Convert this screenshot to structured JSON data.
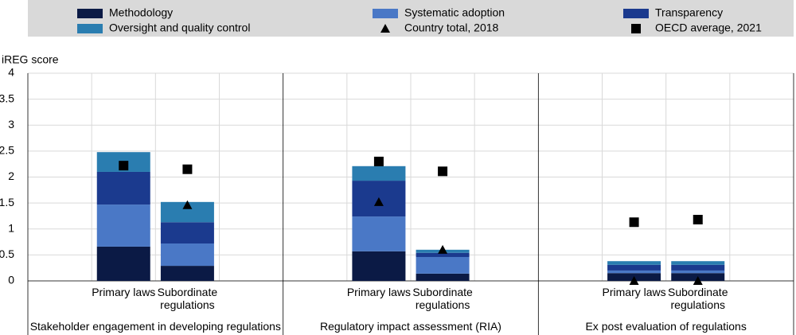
{
  "chart_data": {
    "type": "bar",
    "stacked": true,
    "y_label": "iREG score",
    "ylim": [
      0,
      4
    ],
    "yticks": [
      0,
      0.5,
      1,
      1.5,
      2,
      2.5,
      3,
      3.5,
      4
    ],
    "grid": true,
    "legend": "top",
    "groups": [
      "Stakeholder engagement in developing regulations",
      "Regulatory impact assessment (RIA)",
      "Ex post evaluation of regulations"
    ],
    "categories": [
      null,
      "Primary laws",
      "Subordinate regulations",
      null,
      null,
      "Primary laws",
      "Subordinate regulations",
      null,
      null,
      "Primary laws",
      "Subordinate regulations",
      null
    ],
    "series": [
      {
        "name": "Methodology",
        "color": "#0b1a45",
        "values": [
          null,
          0.66,
          0.29,
          null,
          null,
          0.57,
          0.14,
          null,
          null,
          0.15,
          0.15,
          null
        ]
      },
      {
        "name": "Systematic adoption",
        "color": "#4a78c6",
        "values": [
          null,
          0.81,
          0.43,
          null,
          null,
          0.67,
          0.32,
          null,
          null,
          0.05,
          0.05,
          null
        ]
      },
      {
        "name": "Transparency",
        "color": "#1b3a8e",
        "values": [
          null,
          0.63,
          0.41,
          null,
          null,
          0.69,
          0.08,
          null,
          null,
          0.11,
          0.11,
          null
        ]
      },
      {
        "name": "Oversight and quality control",
        "color": "#2a7db0",
        "values": [
          null,
          0.38,
          0.39,
          null,
          null,
          0.28,
          0.06,
          null,
          null,
          0.07,
          0.07,
          null
        ]
      },
      {
        "name": "Country total, 2018",
        "type": "scatter",
        "marker": "triangle",
        "color": "#000000",
        "values": [
          null,
          null,
          1.46,
          null,
          null,
          1.52,
          0.6,
          null,
          null,
          0,
          0,
          null
        ]
      },
      {
        "name": "OECD average, 2021",
        "type": "scatter",
        "marker": "square",
        "color": "#000000",
        "values": [
          null,
          2.22,
          2.15,
          null,
          null,
          2.3,
          2.11,
          null,
          null,
          1.13,
          1.18,
          null
        ]
      }
    ]
  }
}
